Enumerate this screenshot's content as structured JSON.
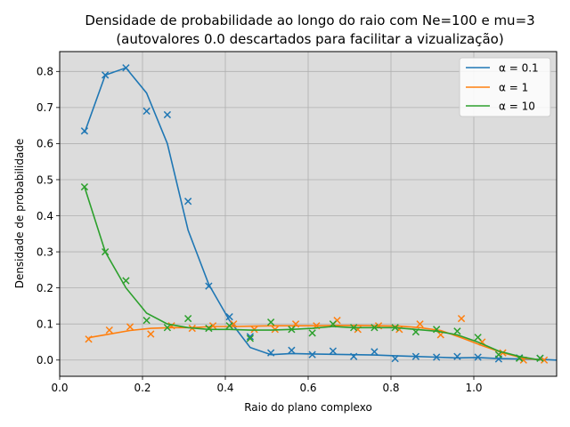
{
  "chart_data": {
    "type": "line",
    "title": "Densidade de probabilidade ao longo do raio com Ne=100 e mu=3",
    "subtitle": "(autovalores 0.0 descartados para facilitar a vizualização)",
    "xlabel": "Raio do plano complexo",
    "ylabel": "Densidade de probabilidade",
    "xlim": [
      0.0,
      1.2
    ],
    "ylim": [
      -0.045,
      0.855
    ],
    "xticks": [
      0.0,
      0.2,
      0.4,
      0.6,
      0.8,
      1.0
    ],
    "yticks": [
      0.0,
      0.1,
      0.2,
      0.3,
      0.4,
      0.5,
      0.6,
      0.7,
      0.8
    ],
    "grid": true,
    "background": "#dcdcdc",
    "legend_position": "top-right",
    "series": [
      {
        "name": "α = 0.1",
        "color": "#1f77b4",
        "line": {
          "x": [
            0.06,
            0.11,
            0.16,
            0.21,
            0.26,
            0.31,
            0.36,
            0.41,
            0.46,
            0.51,
            0.56,
            0.61,
            0.66,
            0.71,
            0.76,
            0.81,
            0.86,
            0.91,
            0.96,
            1.01,
            1.06,
            1.11,
            1.16,
            1.2
          ],
          "y": [
            0.63,
            0.79,
            0.81,
            0.74,
            0.6,
            0.36,
            0.21,
            0.11,
            0.035,
            0.015,
            0.018,
            0.017,
            0.016,
            0.015,
            0.014,
            0.012,
            0.01,
            0.008,
            0.006,
            0.007,
            0.004,
            0.003,
            0.002,
            0.0
          ]
        },
        "points": {
          "x": [
            0.06,
            0.11,
            0.16,
            0.21,
            0.26,
            0.31,
            0.36,
            0.41,
            0.46,
            0.51,
            0.56,
            0.61,
            0.66,
            0.71,
            0.76,
            0.81,
            0.86,
            0.91,
            0.96,
            1.01,
            1.06,
            1.11,
            1.16
          ],
          "y": [
            0.635,
            0.79,
            0.81,
            0.69,
            0.68,
            0.44,
            0.205,
            0.12,
            0.065,
            0.02,
            0.027,
            0.015,
            0.025,
            0.01,
            0.023,
            0.004,
            0.01,
            0.008,
            0.01,
            0.008,
            0.003,
            0.006,
            0.005
          ]
        }
      },
      {
        "name": "α = 1",
        "color": "#ff7f0e",
        "line": {
          "x": [
            0.07,
            0.12,
            0.17,
            0.22,
            0.27,
            0.32,
            0.37,
            0.42,
            0.47,
            0.52,
            0.57,
            0.62,
            0.67,
            0.72,
            0.77,
            0.82,
            0.87,
            0.92,
            0.97,
            1.02,
            1.07,
            1.12,
            1.17
          ],
          "y": [
            0.062,
            0.072,
            0.082,
            0.088,
            0.09,
            0.09,
            0.093,
            0.093,
            0.094,
            0.095,
            0.095,
            0.095,
            0.096,
            0.096,
            0.095,
            0.094,
            0.09,
            0.082,
            0.062,
            0.04,
            0.02,
            0.005,
            0.0
          ]
        },
        "points": {
          "x": [
            0.07,
            0.12,
            0.17,
            0.22,
            0.27,
            0.32,
            0.37,
            0.42,
            0.47,
            0.52,
            0.57,
            0.62,
            0.67,
            0.72,
            0.77,
            0.82,
            0.87,
            0.92,
            0.97,
            1.02,
            1.07,
            1.12,
            1.17
          ],
          "y": [
            0.058,
            0.083,
            0.092,
            0.072,
            0.095,
            0.088,
            0.095,
            0.1,
            0.085,
            0.085,
            0.1,
            0.095,
            0.11,
            0.085,
            0.095,
            0.085,
            0.1,
            0.07,
            0.115,
            0.05,
            0.02,
            0.0,
            0.0
          ]
        }
      },
      {
        "name": "α = 10",
        "color": "#2ca02c",
        "line": {
          "x": [
            0.06,
            0.11,
            0.16,
            0.21,
            0.26,
            0.31,
            0.36,
            0.41,
            0.46,
            0.51,
            0.56,
            0.61,
            0.66,
            0.71,
            0.76,
            0.81,
            0.86,
            0.91,
            0.96,
            1.01,
            1.06,
            1.11,
            1.16
          ],
          "y": [
            0.48,
            0.3,
            0.2,
            0.13,
            0.1,
            0.09,
            0.085,
            0.085,
            0.083,
            0.083,
            0.085,
            0.088,
            0.093,
            0.09,
            0.09,
            0.09,
            0.085,
            0.08,
            0.07,
            0.05,
            0.025,
            0.01,
            0.0
          ]
        },
        "points": {
          "x": [
            0.06,
            0.11,
            0.16,
            0.21,
            0.26,
            0.31,
            0.36,
            0.41,
            0.46,
            0.51,
            0.56,
            0.61,
            0.66,
            0.71,
            0.76,
            0.81,
            0.86,
            0.91,
            0.96,
            1.01,
            1.06,
            1.11,
            1.16
          ],
          "y": [
            0.48,
            0.3,
            0.22,
            0.11,
            0.09,
            0.115,
            0.088,
            0.095,
            0.06,
            0.105,
            0.085,
            0.075,
            0.1,
            0.09,
            0.09,
            0.09,
            0.078,
            0.085,
            0.08,
            0.063,
            0.015,
            0.005,
            0.005
          ]
        }
      }
    ]
  }
}
